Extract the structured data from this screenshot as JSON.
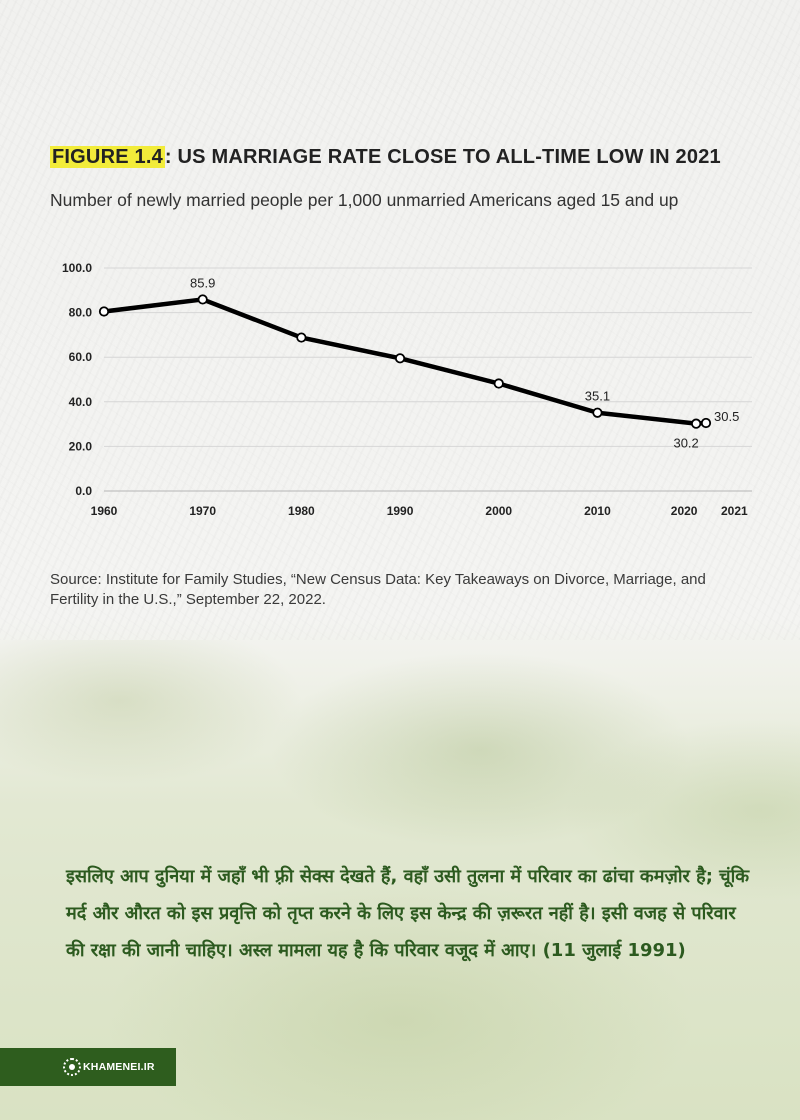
{
  "figure": {
    "label": "FIGURE 1.4",
    "title_rest": ": US MARRIAGE RATE CLOSE TO ALL-TIME LOW IN 2021",
    "subtitle": "Number of newly married people per 1,000 unmarried Americans aged 15 and up"
  },
  "chart_data": {
    "type": "line",
    "title": "FIGURE 1.4: US MARRIAGE RATE CLOSE TO ALL-TIME LOW IN 2021",
    "subtitle": "Number of newly married people per 1,000 unmarried Americans aged 15 and up",
    "xlabel": "",
    "ylabel": "",
    "x": [
      1960,
      1970,
      1980,
      1990,
      2000,
      2010,
      2020,
      2021
    ],
    "x_ticks": [
      "1960",
      "1970",
      "1980",
      "1990",
      "2000",
      "2010",
      "2020",
      "2021"
    ],
    "y_ticks": [
      "0.0",
      "20.0",
      "40.0",
      "60.0",
      "80.0",
      "100.0"
    ],
    "ylim": [
      0,
      100
    ],
    "series": [
      {
        "values": [
          80.5,
          85.9,
          68.8,
          59.5,
          48.2,
          35.1,
          30.2,
          30.5
        ]
      }
    ],
    "data_labels": [
      {
        "x": 1970,
        "text": "85.9"
      },
      {
        "x": 2010,
        "text": "35.1"
      },
      {
        "x": 2020,
        "text": "30.2"
      },
      {
        "x": 2021,
        "text": "30.5"
      }
    ],
    "grid": true,
    "line_color": "#000000"
  },
  "source": "Source: Institute for Family Studies, “New Census Data: Key Takeaways on Divorce, Marriage, and Fertility in the U.S.,” September 22, 2022.",
  "quote": "इसलिए आप दुनिया में जहाँ भी फ़्री सेक्स देखते हैं, वहाँ उसी तुलना में परिवार का ढांचा कमज़ोर है; चूंकि मर्द और औरत को इस प्रवृत्ति को तृप्त करने के लिए इस केन्द्र की ज़रूरत नहीं है। इसी वजह से परिवार की रक्षा की जानी चाहिए। अस्ल मामला यह है कि परिवार वजूद में आए। (11 जुलाई 1991)",
  "footer": {
    "logo_text": "KHAMENEI.IR",
    "icon": "khamenei-logo-icon",
    "bar_color": "#2e5d1e"
  }
}
